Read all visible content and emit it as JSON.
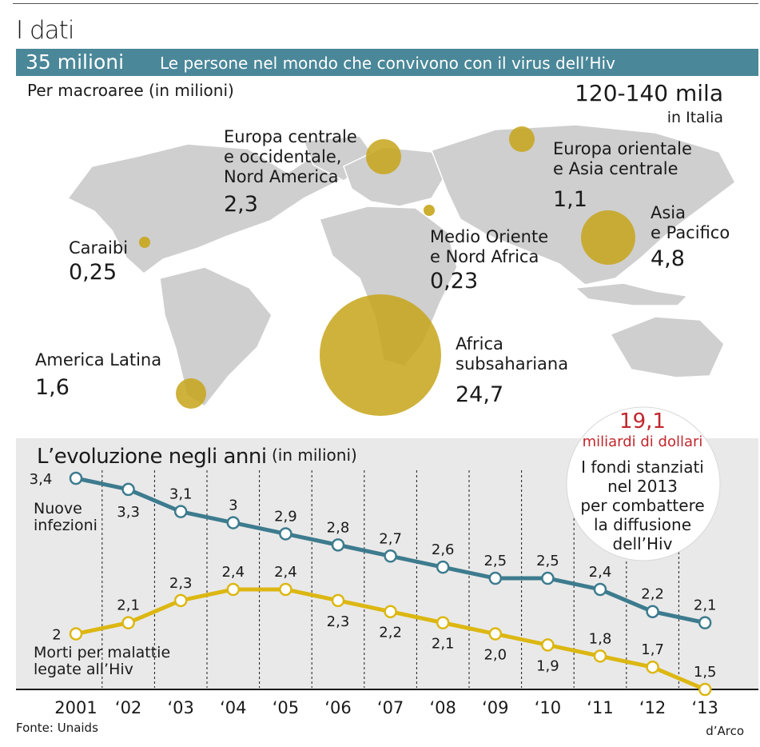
{
  "header": {
    "title": "I dati",
    "banner_big": "35 milioni",
    "banner_small": "Le persone nel mondo che convivono con il virus dell’Hiv"
  },
  "map": {
    "subtitle": "Per macroaree (in milioni)",
    "italy_value": "120-140 mila",
    "italy_label": "in Italia",
    "bubble_color": "#c7a51a",
    "regions": [
      {
        "id": "europa-occ",
        "label": "Europa centrale\ne occidentale,\nNord America",
        "value": "2,3"
      },
      {
        "id": "europa-or",
        "label": "Europa orientale\ne Asia centrale",
        "value": "1,1"
      },
      {
        "id": "asia",
        "label": "Asia\ne Pacifico",
        "value": "4,8"
      },
      {
        "id": "caraibi",
        "label": "Caraibi",
        "value": "0,25"
      },
      {
        "id": "medio-oriente",
        "label": "Medio Oriente\ne Nord Africa",
        "value": "0,23"
      },
      {
        "id": "africa",
        "label": "Africa\nsubsahariana",
        "value": "24,7"
      },
      {
        "id": "america-latina",
        "label": "America Latina",
        "value": "1,6"
      }
    ]
  },
  "funds": {
    "amount": "19,1",
    "unit": "miliardi di dollari",
    "description": "I fondi stanziati\nnel 2013\nper combattere\nla diffusione\ndell’Hiv"
  },
  "chart_data": {
    "type": "line",
    "title": "L’evoluzione negli anni",
    "unit_label": "(in milioni)",
    "categories": [
      "2001",
      "‘02",
      "‘03",
      "‘04",
      "‘05",
      "‘06",
      "‘07",
      "‘08",
      "‘09",
      "‘10",
      "‘11",
      "‘12",
      "‘13"
    ],
    "ylim": [
      1.5,
      3.4
    ],
    "series": [
      {
        "name": "Nuove\ninfezioni",
        "color": "#3d7b8e",
        "values": [
          3.4,
          3.3,
          3.1,
          3.0,
          2.9,
          2.8,
          2.7,
          2.6,
          2.5,
          2.5,
          2.4,
          2.2,
          2.1
        ],
        "labels": [
          "3,4",
          "3,3",
          "3,1",
          "3",
          "2,9",
          "2,8",
          "2,7",
          "2,6",
          "2,5",
          "2,5",
          "2,4",
          "2,2",
          "2,1"
        ]
      },
      {
        "name": "Morti per malattie\nlegate all’Hiv",
        "color": "#dcb712",
        "values": [
          2.0,
          2.1,
          2.3,
          2.4,
          2.4,
          2.3,
          2.2,
          2.1,
          2.0,
          1.9,
          1.8,
          1.7,
          1.5
        ],
        "labels": [
          "2",
          "2,1",
          "2,3",
          "2,4",
          "2,4",
          "2,3",
          "2,2",
          "2,1",
          "2,0",
          "1,9",
          "1,8",
          "1,7",
          "1,5"
        ]
      }
    ]
  },
  "footer": {
    "source": "Fonte: Unaids",
    "credit": "d’Arco"
  }
}
